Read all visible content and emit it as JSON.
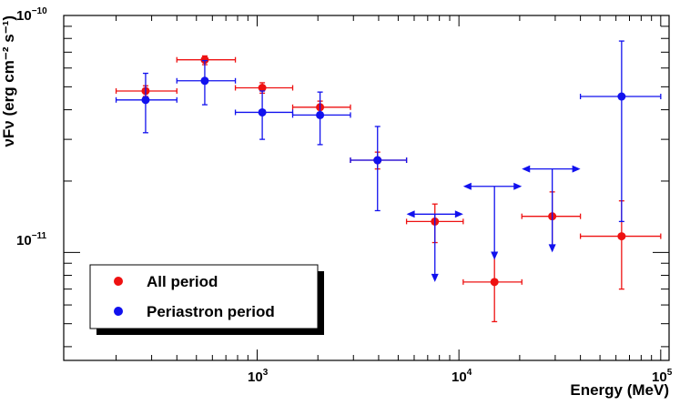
{
  "chart_data": {
    "type": "scatter",
    "title": "",
    "xlabel": "Energy (MeV)",
    "ylabel": "νFν (erg cm⁻² s⁻¹)",
    "xscale": "log",
    "yscale": "log",
    "xlim": [
      110,
      110000
    ],
    "ylim": [
      3.5e-12,
      1e-10
    ],
    "x_tick_labels": [
      {
        "value": 1000,
        "base": "10",
        "exp": "3"
      },
      {
        "value": 10000,
        "base": "10",
        "exp": "4"
      },
      {
        "value": 100000,
        "base": "10",
        "exp": "5"
      }
    ],
    "y_tick_labels": [
      {
        "value": 1e-11,
        "base": "10",
        "exp": "−11"
      },
      {
        "value": 1e-10,
        "base": "10",
        "exp": "−10"
      }
    ],
    "legend": {
      "position": "bottom-left",
      "entries": [
        {
          "label": "All period",
          "color": "#ee1111"
        },
        {
          "label": "Periastron period",
          "color": "#1111ee"
        }
      ]
    },
    "series": [
      {
        "name": "All period",
        "color": "#ee1111",
        "points": [
          {
            "x": 280,
            "xlo": 200,
            "xhi": 400,
            "y": 4.8e-11,
            "ylo": 4.55e-11,
            "yhi": 5.05e-11
          },
          {
            "x": 550,
            "xlo": 400,
            "xhi": 780,
            "y": 6.5e-11,
            "ylo": 6.2e-11,
            "yhi": 6.75e-11
          },
          {
            "x": 1060,
            "xlo": 780,
            "xhi": 1500,
            "y": 4.95e-11,
            "ylo": 4.7e-11,
            "yhi": 5.2e-11
          },
          {
            "x": 2050,
            "xlo": 1500,
            "xhi": 2900,
            "y": 4.1e-11,
            "ylo": 3.85e-11,
            "yhi": 4.35e-11
          },
          {
            "x": 3950,
            "xlo": 2900,
            "xhi": 5500,
            "y": 2.45e-11,
            "ylo": 2.25e-11,
            "yhi": 2.65e-11
          },
          {
            "x": 7600,
            "xlo": 5500,
            "xhi": 10500,
            "y": 1.35e-11,
            "ylo": 1.1e-11,
            "yhi": 1.6e-11
          },
          {
            "x": 15000,
            "xlo": 10500,
            "xhi": 20500,
            "y": 7.5e-12,
            "ylo": 5.1e-12,
            "yhi": 9.9e-12
          },
          {
            "x": 29000,
            "xlo": 20500,
            "xhi": 40000,
            "y": 1.42e-11,
            "ylo": 1.07e-11,
            "yhi": 1.8e-11
          },
          {
            "x": 64000,
            "xlo": 40000,
            "xhi": 100000,
            "y": 1.17e-11,
            "ylo": 7e-12,
            "yhi": 1.65e-11
          }
        ]
      },
      {
        "name": "Periastron period",
        "color": "#1111ee",
        "points": [
          {
            "x": 280,
            "xlo": 200,
            "xhi": 400,
            "y": 4.4e-11,
            "ylo": 3.2e-11,
            "yhi": 5.7e-11
          },
          {
            "x": 550,
            "xlo": 400,
            "xhi": 780,
            "y": 5.3e-11,
            "ylo": 4.2e-11,
            "yhi": 6.45e-11
          },
          {
            "x": 1060,
            "xlo": 780,
            "xhi": 1500,
            "y": 3.9e-11,
            "ylo": 3e-11,
            "yhi": 4.8e-11
          },
          {
            "x": 2050,
            "xlo": 1500,
            "xhi": 2900,
            "y": 3.8e-11,
            "ylo": 2.85e-11,
            "yhi": 4.75e-11
          },
          {
            "x": 3950,
            "xlo": 2900,
            "xhi": 5500,
            "y": 2.45e-11,
            "ylo": 1.5e-11,
            "yhi": 3.4e-11
          },
          {
            "x": 7600,
            "xlo": 5500,
            "xhi": 10500,
            "upper_limit": 1.45e-11,
            "arrow_to": 7.5e-12
          },
          {
            "x": 15000,
            "xlo": 10500,
            "xhi": 20500,
            "upper_limit": 1.9e-11,
            "arrow_to": 9.3e-12
          },
          {
            "x": 29000,
            "xlo": 20500,
            "xhi": 40000,
            "upper_limit": 2.25e-11,
            "arrow_to": 1e-11
          },
          {
            "x": 64000,
            "xlo": 40000,
            "xhi": 100000,
            "y": 4.55e-11,
            "ylo": 1.35e-11,
            "yhi": 7.8e-11
          }
        ]
      }
    ]
  }
}
